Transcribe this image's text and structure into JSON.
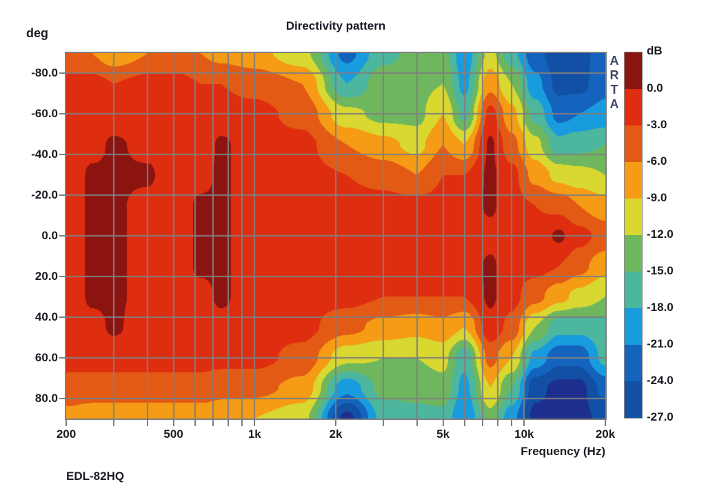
{
  "header": {
    "title": "Directivity pattern"
  },
  "labels": {
    "y_axis_unit": "deg",
    "x_axis_label": "Frequency (Hz)",
    "footer": "EDL-82HQ",
    "watermark": "ARTA",
    "colorbar_unit": "dB"
  },
  "chart_data": {
    "type": "heatmap",
    "title": "Directivity pattern",
    "xlabel": "Frequency (Hz)",
    "ylabel": "deg",
    "x_scale": "log",
    "x_range_hz": [
      200,
      20000
    ],
    "y_range_deg": [
      -90,
      90
    ],
    "grid_on": true,
    "grid_color": "#7f7f7f",
    "x_major_ticks": [
      {
        "hz": 200,
        "label": "200"
      },
      {
        "hz": 500,
        "label": "500"
      },
      {
        "hz": 1000,
        "label": "1k"
      },
      {
        "hz": 2000,
        "label": "2k"
      },
      {
        "hz": 5000,
        "label": "5k"
      },
      {
        "hz": 10000,
        "label": "10k"
      },
      {
        "hz": 20000,
        "label": "20k"
      }
    ],
    "x_grid_lines_hz": [
      300,
      400,
      500,
      600,
      700,
      800,
      900,
      1000,
      2000,
      3000,
      4000,
      5000,
      6000,
      7000,
      8000,
      9000,
      10000
    ],
    "x_tick_marks_hz": [
      200,
      300,
      400,
      500,
      600,
      700,
      800,
      900,
      1000,
      2000,
      3000,
      4000,
      5000,
      6000,
      7000,
      8000,
      9000,
      10000,
      20000
    ],
    "y_ticks": [
      {
        "deg": -80,
        "label": "-80.0"
      },
      {
        "deg": -60,
        "label": "-60.0"
      },
      {
        "deg": -40,
        "label": "-40.0"
      },
      {
        "deg": -20,
        "label": "-20.0"
      },
      {
        "deg": 0,
        "label": "0.0"
      },
      {
        "deg": 20,
        "label": "20.0"
      },
      {
        "deg": 40,
        "label": "40.0"
      },
      {
        "deg": 60,
        "label": "60.0"
      },
      {
        "deg": 80,
        "label": "80.0"
      }
    ],
    "grid_frequencies_hz": [
      200,
      250,
      300,
      400,
      500,
      630,
      750,
      1000,
      1500,
      2200,
      3000,
      4000,
      5000,
      6000,
      7500,
      9000,
      11000,
      13500,
      16000,
      20000
    ],
    "grid_angles_deg": [
      -90,
      -75,
      -60,
      -45,
      -30,
      -15,
      0,
      15,
      30,
      45,
      60,
      75,
      90
    ],
    "values_db": [
      [
        -5,
        -6,
        -8,
        -6,
        -5,
        -6,
        -7,
        -8,
        -11,
        -22,
        -16,
        -14,
        -14,
        -20,
        -11,
        -17,
        -23,
        -26,
        -26,
        -21
      ],
      [
        -2,
        -2,
        -3,
        -2,
        -2,
        -3,
        -3,
        -4,
        -6,
        -18,
        -13,
        -13,
        -12,
        -19,
        -7,
        -12,
        -20,
        -25,
        -25,
        -22
      ],
      [
        -2,
        -2,
        -2,
        -2,
        -2,
        -2,
        -2,
        -2,
        -4,
        -11,
        -13,
        -13,
        -9,
        -16,
        -2,
        -8,
        -16,
        -22,
        -21,
        -20
      ],
      [
        -2,
        -1,
        0.5,
        -1,
        -2,
        -2,
        0.5,
        -2,
        -2,
        -6,
        -8,
        -10,
        -6,
        -9,
        0.5,
        -5,
        -11,
        -17,
        -16,
        -15
      ],
      [
        -2,
        0.5,
        0.5,
        0.5,
        -2,
        -1,
        0.5,
        -2,
        -2,
        -3,
        -4,
        -6,
        -3,
        -3,
        0.5,
        -2,
        -7,
        -10,
        -11,
        -12
      ],
      [
        -2,
        0.5,
        0.5,
        -1,
        -2,
        0.5,
        0.5,
        -2,
        -2,
        -2,
        -2,
        -2,
        -2,
        -2,
        0.5,
        -2,
        -3,
        -4,
        -6,
        -8
      ],
      [
        -2,
        0.5,
        0.5,
        -1,
        -2,
        0.5,
        0.5,
        -2,
        -2,
        -2,
        -2,
        -2,
        -2,
        -2,
        -1,
        -2,
        -2,
        0.5,
        -2,
        -4
      ],
      [
        -2,
        0.5,
        0.5,
        -1,
        -2,
        0.5,
        0.5,
        -2,
        -2,
        -2,
        -2,
        -2,
        -2,
        -2,
        0.5,
        -2,
        -2,
        -3,
        -5,
        -8
      ],
      [
        -2,
        0.5,
        0.5,
        -1,
        -2,
        -1,
        0.5,
        -2,
        -2,
        -2,
        -3,
        -3,
        -3,
        -3,
        0.5,
        -2,
        -5,
        -8,
        -10,
        -12
      ],
      [
        -2,
        -1,
        0.5,
        -2,
        -2,
        -2,
        -1,
        -2,
        -2,
        -5,
        -7,
        -8,
        -7,
        -9,
        -1,
        -4,
        -12,
        -17,
        -17,
        -16
      ],
      [
        -2,
        -2,
        -2,
        -2,
        -2,
        -2,
        -2,
        -2,
        -4,
        -11,
        -12,
        -12,
        -11,
        -17,
        -5,
        -9,
        -19,
        -23,
        -23,
        -17
      ],
      [
        -4,
        -4,
        -4,
        -4,
        -4,
        -4,
        -5,
        -5,
        -7,
        -20,
        -14,
        -14,
        -13,
        -19,
        -9,
        -15,
        -26,
        -28,
        -28,
        -23
      ],
      [
        -7,
        -8,
        -8,
        -8,
        -8,
        -8,
        -8,
        -9,
        -11,
        -28,
        -17,
        -16,
        -16,
        -21,
        -13,
        -20,
        -28,
        -28,
        -28,
        -26
      ]
    ],
    "colorbar": {
      "unit": "dB",
      "step_db": 3,
      "tick_labels": [
        "0.0",
        "-3.0",
        "-6.0",
        "-9.0",
        "-12.0",
        "-15.0",
        "-18.0",
        "-21.0",
        "-24.0",
        "-27.0"
      ],
      "segment_colors_top_to_bottom": [
        "#8b1411",
        "#df2d0f",
        "#e35a15",
        "#f59b15",
        "#d8d830",
        "#6fb75f",
        "#4cb69e",
        "#189cdd",
        "#1464be",
        "#1150a4"
      ],
      "below_min_color": "#1d2e8c"
    }
  }
}
